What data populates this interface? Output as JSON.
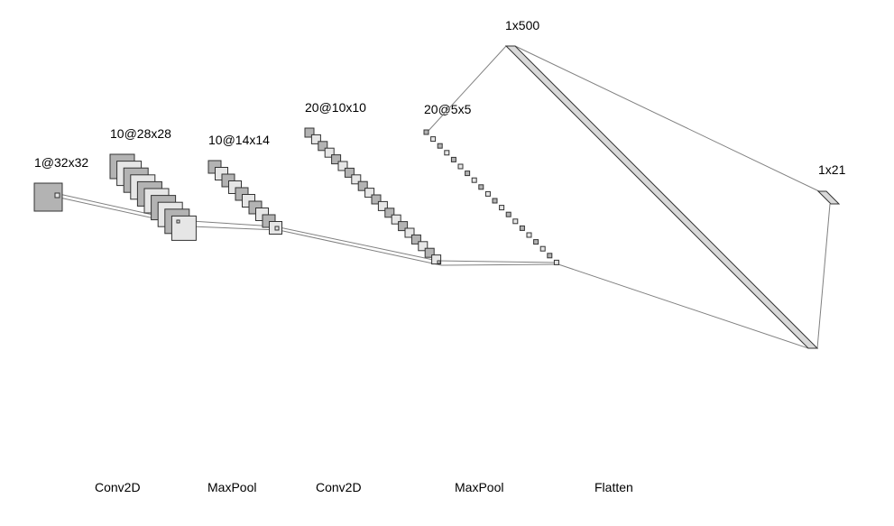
{
  "layers": [
    {
      "shape": "1@32x32"
    },
    {
      "shape": "10@28x28"
    },
    {
      "shape": "10@14x14"
    },
    {
      "shape": "20@10x10"
    },
    {
      "shape": "20@5x5"
    },
    {
      "shape": "1x500"
    },
    {
      "shape": "1x21"
    }
  ],
  "operations": [
    "Conv2D",
    "MaxPool",
    "Conv2D",
    "MaxPool",
    "Flatten"
  ],
  "colors": {
    "dark_fill": "#b3b3b3",
    "light_fill": "#e6e6e6",
    "stroke": "#333333",
    "line": "#808080",
    "bar_fill": "#d9d9d9"
  }
}
